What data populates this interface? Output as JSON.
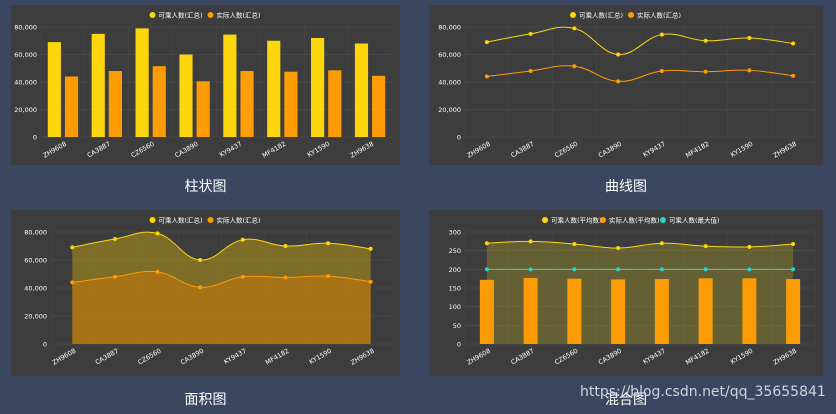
{
  "captions": [
    "柱状图",
    "曲线图",
    "面积图",
    "混合图"
  ],
  "watermark": "https://blog.csdn.net/qq_35655841",
  "colors": {
    "yellow": "#fdd60e",
    "orange": "#fd9c04",
    "cyan": "#27d6c9",
    "grid": "#555555",
    "text": "#ffffff"
  },
  "chart_data": [
    {
      "type": "bar",
      "title": "",
      "categories": [
        "ZH9608",
        "CA3887",
        "CZ6560",
        "CA3890",
        "KY9437",
        "MF4182",
        "KY1590",
        "ZH9638"
      ],
      "series": [
        {
          "name": "可乘人数(汇总)",
          "values": [
            69000,
            75000,
            79000,
            60000,
            74500,
            70000,
            72000,
            68000
          ]
        },
        {
          "name": "实际人数(汇总)",
          "values": [
            44000,
            48000,
            51500,
            40500,
            48000,
            47500,
            48500,
            44500
          ]
        }
      ],
      "ylim": [
        0,
        80000
      ],
      "yticks": [
        "0",
        "20,000",
        "40,000",
        "60,000",
        "80,000"
      ],
      "xlabel": "",
      "ylabel": "",
      "legend": "top-center"
    },
    {
      "type": "line",
      "title": "",
      "categories": [
        "ZH9608",
        "CA3887",
        "CZ6560",
        "CA3890",
        "KY9437",
        "MF4182",
        "KY1590",
        "ZH9638"
      ],
      "series": [
        {
          "name": "可乘人数(汇总)",
          "values": [
            69000,
            75000,
            79000,
            60000,
            74500,
            70000,
            72000,
            68000
          ]
        },
        {
          "name": "实际人数(汇总)",
          "values": [
            44000,
            48000,
            51500,
            40500,
            48000,
            47500,
            48500,
            44500
          ]
        }
      ],
      "ylim": [
        0,
        80000
      ],
      "yticks": [
        "0",
        "20,000",
        "40,000",
        "60,000",
        "80,000"
      ],
      "xlabel": "",
      "ylabel": "",
      "legend": "top-center"
    },
    {
      "type": "area",
      "title": "",
      "categories": [
        "ZH9608",
        "CA3887",
        "CZ6560",
        "CA3890",
        "KY9437",
        "MF4182",
        "KY1590",
        "ZH9638"
      ],
      "series": [
        {
          "name": "可乘人数(汇总)",
          "values": [
            69000,
            75000,
            79000,
            60000,
            74500,
            70000,
            72000,
            68000
          ]
        },
        {
          "name": "实际人数(汇总)",
          "values": [
            44000,
            48000,
            51500,
            40500,
            48000,
            47500,
            48500,
            44500
          ]
        }
      ],
      "ylim": [
        0,
        80000
      ],
      "yticks": [
        "0",
        "20,000",
        "40,000",
        "60,000",
        "80,000"
      ],
      "xlabel": "",
      "ylabel": "",
      "legend": "top-center"
    },
    {
      "type": "bar",
      "title": "",
      "categories": [
        "ZH9608",
        "CA3887",
        "CZ6560",
        "CA3890",
        "KY9437",
        "MF4182",
        "KY1590",
        "ZH9638"
      ],
      "series": [
        {
          "name": "可乘人数(平均数)",
          "kind": "area",
          "values": [
            270,
            275,
            268,
            257,
            270,
            262,
            260,
            268
          ]
        },
        {
          "name": "实际人数(平均数)",
          "kind": "bar",
          "values": [
            172,
            177,
            175,
            173,
            174,
            176,
            176,
            174
          ]
        },
        {
          "name": "可乘人数(最大值)",
          "kind": "line",
          "values": [
            200,
            200,
            200,
            200,
            200,
            200,
            200,
            200
          ]
        }
      ],
      "ylim": [
        0,
        300
      ],
      "yticks": [
        "0",
        "50",
        "100",
        "150",
        "200",
        "250",
        "300"
      ],
      "xlabel": "",
      "ylabel": "",
      "legend": "top-center"
    }
  ]
}
